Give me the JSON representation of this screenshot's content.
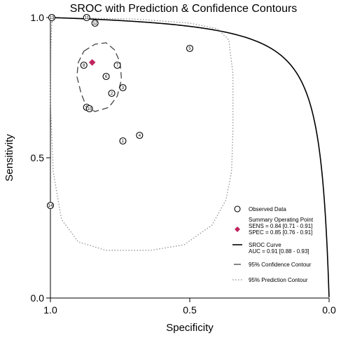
{
  "chart_data": {
    "type": "scatter",
    "title": "SROC with Prediction & Confidence Contours",
    "xlabel": "Specificity",
    "ylabel": "Sensitivity",
    "x_reversed": true,
    "xlim": [
      1.0,
      0.0
    ],
    "ylim": [
      0.0,
      1.0
    ],
    "x_ticks": [
      {
        "value": 1.0,
        "label": "1.0"
      },
      {
        "value": 0.5,
        "label": "0.5"
      },
      {
        "value": 0.0,
        "label": "0.0"
      }
    ],
    "y_ticks": [
      {
        "value": 0.0,
        "label": "0.0"
      },
      {
        "value": 0.5,
        "label": "0.5"
      },
      {
        "value": 1.0,
        "label": "1.0"
      }
    ],
    "grid": false,
    "legend_position": "bottom-right",
    "observed_data": [
      {
        "label": "1",
        "specificity": 0.74,
        "sensitivity": 0.56
      },
      {
        "label": "2",
        "specificity": 0.78,
        "sensitivity": 0.73
      },
      {
        "label": "3",
        "specificity": 0.74,
        "sensitivity": 0.75
      },
      {
        "label": "4",
        "specificity": 0.68,
        "sensitivity": 0.58
      },
      {
        "label": "5",
        "specificity": 0.5,
        "sensitivity": 0.89
      },
      {
        "label": "6",
        "specificity": 0.8,
        "sensitivity": 0.79
      },
      {
        "label": "7",
        "specificity": 0.76,
        "sensitivity": 0.83
      },
      {
        "label": "8",
        "specificity": 0.88,
        "sensitivity": 0.83
      },
      {
        "label": "9",
        "specificity": 0.87,
        "sensitivity": 0.68
      },
      {
        "label": "10",
        "specificity": 0.86,
        "sensitivity": 0.675
      },
      {
        "label": "11",
        "specificity": 0.87,
        "sensitivity": 1.0
      },
      {
        "label": "12",
        "specificity": 0.84,
        "sensitivity": 0.98
      },
      {
        "label": "13",
        "specificity": 0.995,
        "sensitivity": 1.0
      },
      {
        "label": "14",
        "specificity": 1.0,
        "sensitivity": 0.33
      }
    ],
    "summary_point": {
      "specificity": 0.85,
      "sensitivity": 0.84,
      "color": "#c0245e"
    },
    "confidence_contour": [
      [
        0.88,
        0.88
      ],
      [
        0.84,
        0.905
      ],
      [
        0.8,
        0.91
      ],
      [
        0.77,
        0.885
      ],
      [
        0.75,
        0.84
      ],
      [
        0.745,
        0.78
      ],
      [
        0.76,
        0.72
      ],
      [
        0.79,
        0.68
      ],
      [
        0.84,
        0.665
      ],
      [
        0.87,
        0.68
      ],
      [
        0.89,
        0.73
      ],
      [
        0.905,
        0.79
      ],
      [
        0.9,
        0.84
      ]
    ],
    "prediction_contour": [
      [
        0.995,
        0.985
      ],
      [
        0.98,
        0.998
      ],
      [
        0.9,
        0.998
      ],
      [
        0.7,
        0.995
      ],
      [
        0.5,
        0.98
      ],
      [
        0.4,
        0.96
      ],
      [
        0.36,
        0.92
      ],
      [
        0.345,
        0.8
      ],
      [
        0.345,
        0.6
      ],
      [
        0.35,
        0.45
      ],
      [
        0.37,
        0.35
      ],
      [
        0.42,
        0.26
      ],
      [
        0.52,
        0.19
      ],
      [
        0.64,
        0.17
      ],
      [
        0.8,
        0.17
      ],
      [
        0.9,
        0.2
      ],
      [
        0.96,
        0.28
      ],
      [
        0.99,
        0.45
      ],
      [
        1.0,
        0.7
      ],
      [
        0.998,
        0.9
      ]
    ],
    "sroc_curve": {
      "auc_label": "AUC = 0.91 [0.88 - 0.93]",
      "logit_intercept": 3.426,
      "slope": 1.0
    },
    "legend": [
      {
        "key": "observed",
        "lines": [
          "Observed Data"
        ]
      },
      {
        "key": "summary",
        "lines": [
          "Summary Operating Point",
          "SENS = 0.84 [0.71 - 0.91]",
          "SPEC = 0.85 [0.76 - 0.91]"
        ]
      },
      {
        "key": "sroc",
        "lines": [
          "SROC Curve",
          "AUC = 0.91 [0.88 - 0.93]"
        ]
      },
      {
        "key": "confidence",
        "lines": [
          "95% Confidence Contour"
        ]
      },
      {
        "key": "prediction",
        "lines": [
          "95% Prediction Contour"
        ]
      }
    ]
  }
}
